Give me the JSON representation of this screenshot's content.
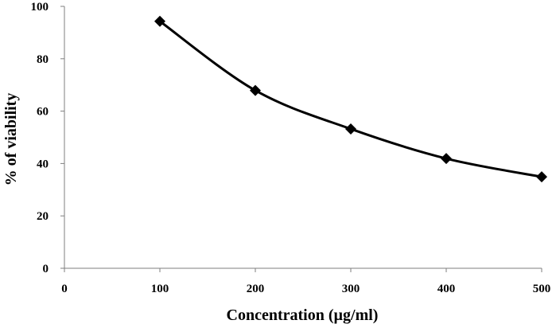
{
  "chart_data": {
    "type": "line",
    "title": "",
    "xlabel": "Concentration (µg/ml)",
    "ylabel": "% of viability",
    "xlim": [
      0,
      500
    ],
    "ylim": [
      0,
      100
    ],
    "x_ticks": [
      0,
      100,
      200,
      300,
      400,
      500
    ],
    "y_ticks": [
      0,
      20,
      40,
      60,
      80,
      100
    ],
    "grid": false,
    "smooth": true,
    "marker": "diamond",
    "series": [
      {
        "name": "% of viability",
        "x": [
          100,
          200,
          300,
          400,
          500
        ],
        "values": [
          94.3,
          67.9,
          53.2,
          41.9,
          34.9
        ],
        "color": "#000000"
      }
    ]
  }
}
